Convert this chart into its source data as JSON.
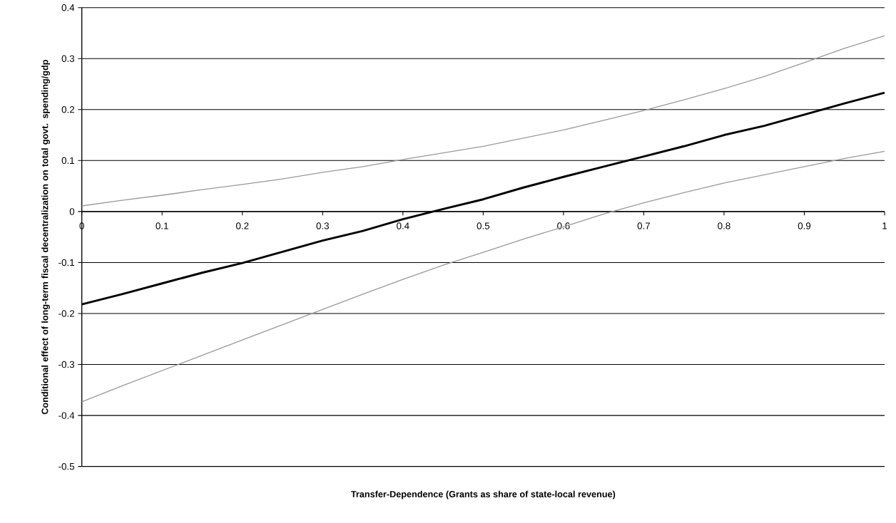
{
  "chart_data": {
    "type": "line",
    "xlabel": "Transfer-Dependence (Grants as share of state-local revenue)",
    "ylabel": "Conditional effect of long-term fiscal decentralization on total govt. spending/gdp",
    "x": [
      0,
      0.05,
      0.1,
      0.15,
      0.2,
      0.25,
      0.3,
      0.35,
      0.4,
      0.45,
      0.5,
      0.55,
      0.6,
      0.65,
      0.7,
      0.75,
      0.8,
      0.85,
      0.9,
      0.95,
      1
    ],
    "series": [
      {
        "color": "#999999",
        "values": [
          0.011,
          0.022,
          0.032,
          0.043,
          0.053,
          0.064,
          0.077,
          0.088,
          0.102,
          0.115,
          0.128,
          0.144,
          0.16,
          0.179,
          0.198,
          0.219,
          0.241,
          0.265,
          0.292,
          0.32,
          0.345
        ]
      },
      {
        "color": "#000000",
        "values": [
          -0.182,
          -0.162,
          -0.141,
          -0.12,
          -0.101,
          -0.079,
          -0.057,
          -0.038,
          -0.015,
          0.005,
          0.024,
          0.047,
          0.068,
          0.088,
          0.108,
          0.128,
          0.15,
          0.168,
          0.19,
          0.212,
          0.233
        ]
      },
      {
        "color": "#999999",
        "values": [
          -0.373,
          -0.342,
          -0.312,
          -0.282,
          -0.252,
          -0.222,
          -0.192,
          -0.162,
          -0.133,
          -0.105,
          -0.08,
          -0.054,
          -0.03,
          -0.005,
          0.017,
          0.037,
          0.056,
          0.072,
          0.088,
          0.104,
          0.118
        ]
      }
    ],
    "xlim": [
      0,
      1
    ],
    "xticks": [
      0,
      0.1,
      0.2,
      0.3,
      0.4,
      0.5,
      0.6,
      0.7,
      0.8,
      0.9,
      1
    ],
    "ylim": [
      -0.5,
      0.4
    ],
    "yticks": [
      -0.5,
      -0.4,
      -0.3,
      -0.2,
      -0.1,
      0,
      0.1,
      0.2,
      0.3,
      0.4
    ],
    "grid": "y",
    "marker": "none",
    "line_style": "solid"
  }
}
